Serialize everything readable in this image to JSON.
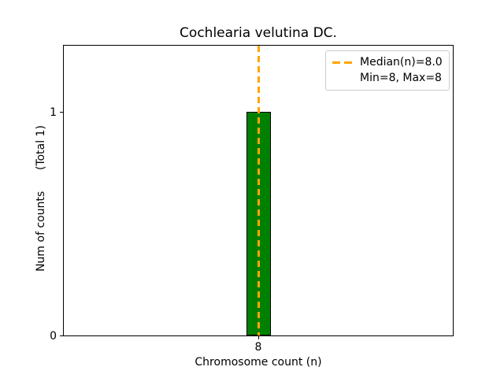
{
  "chart_data": {
    "type": "bar",
    "title": "Cochlearia velutina DC.",
    "xlabel": "Chromosome count (n)",
    "ylabel": "Num of counts",
    "ylabel_annotation": "(Total 1)",
    "ylabel_display": "Num of counts      (Total 1)",
    "categories": [
      8
    ],
    "values": [
      1
    ],
    "total_counts": 1,
    "xticks": [
      "8"
    ],
    "yticks": [
      "0",
      "1"
    ],
    "ylim": [
      0,
      1.3
    ],
    "grid": false,
    "bar_color": "#008000",
    "bar_edge_color": "#000000",
    "median_line": {
      "value": 8.0,
      "color": "#FFA500",
      "style": "dashed"
    },
    "stats": {
      "median": 8.0,
      "min": 8,
      "max": 8
    },
    "legend": {
      "position": "upper right",
      "entries": [
        "Median(n)=8.0",
        "Min=8, Max=8"
      ],
      "border_color": "#cccccc"
    }
  }
}
